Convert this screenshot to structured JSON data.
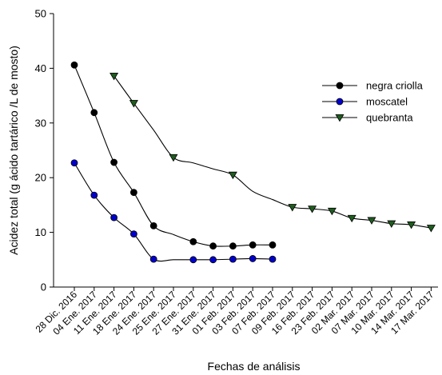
{
  "chart_data": {
    "type": "line",
    "title": "",
    "xlabel": "Fechas de análisis",
    "ylabel": "Acidez total (g ácido tartárico /L de mosto)",
    "ylim": [
      0,
      50
    ],
    "yticks": [
      0,
      10,
      20,
      30,
      40,
      50
    ],
    "grid": false,
    "legend_position": "top-right",
    "categories": [
      "28 Dic. 2016",
      "04 Ene. 2017",
      "11 Ene. 2017",
      "18 Ene. 2017",
      "24 Ene. 2017",
      "25 Ene. 2017",
      "27 Ene. 2017",
      "31 Ene. 2017",
      "01 Feb. 2017",
      "03 Feb. 2017",
      "07 Feb. 2017",
      "09 Feb. 2017",
      "16 Feb. 2017",
      "23 Feb. 2017",
      "02 Mar. 2017",
      "07 Mar. 2017",
      "10 Mar. 2017",
      "14 Mar. 2017",
      "17 Mar. 2017"
    ],
    "series": [
      {
        "name": "negra criolla",
        "color": "#000000",
        "marker": "circle",
        "values": [
          40.6,
          31.9,
          22.8,
          17.3,
          11.2,
          9.6,
          8.3,
          7.5,
          7.5,
          7.7,
          7.7,
          null,
          null,
          null,
          null,
          null,
          null,
          null,
          null
        ]
      },
      {
        "name": "moscatel",
        "color": "#0000cc",
        "marker": "circle",
        "values": [
          22.7,
          16.8,
          12.7,
          9.7,
          5.1,
          5.0,
          5.0,
          5.0,
          5.1,
          5.2,
          5.1,
          null,
          null,
          null,
          null,
          null,
          null,
          null,
          null
        ]
      },
      {
        "name": "quebranta",
        "color": "#1f5c1f",
        "marker": "triangle-down",
        "values": [
          null,
          null,
          38.6,
          33.6,
          28.7,
          23.7,
          22.7,
          21.6,
          20.5,
          17.5,
          16.0,
          14.6,
          14.3,
          13.9,
          12.6,
          12.2,
          11.6,
          11.4,
          10.8
        ]
      }
    ]
  }
}
